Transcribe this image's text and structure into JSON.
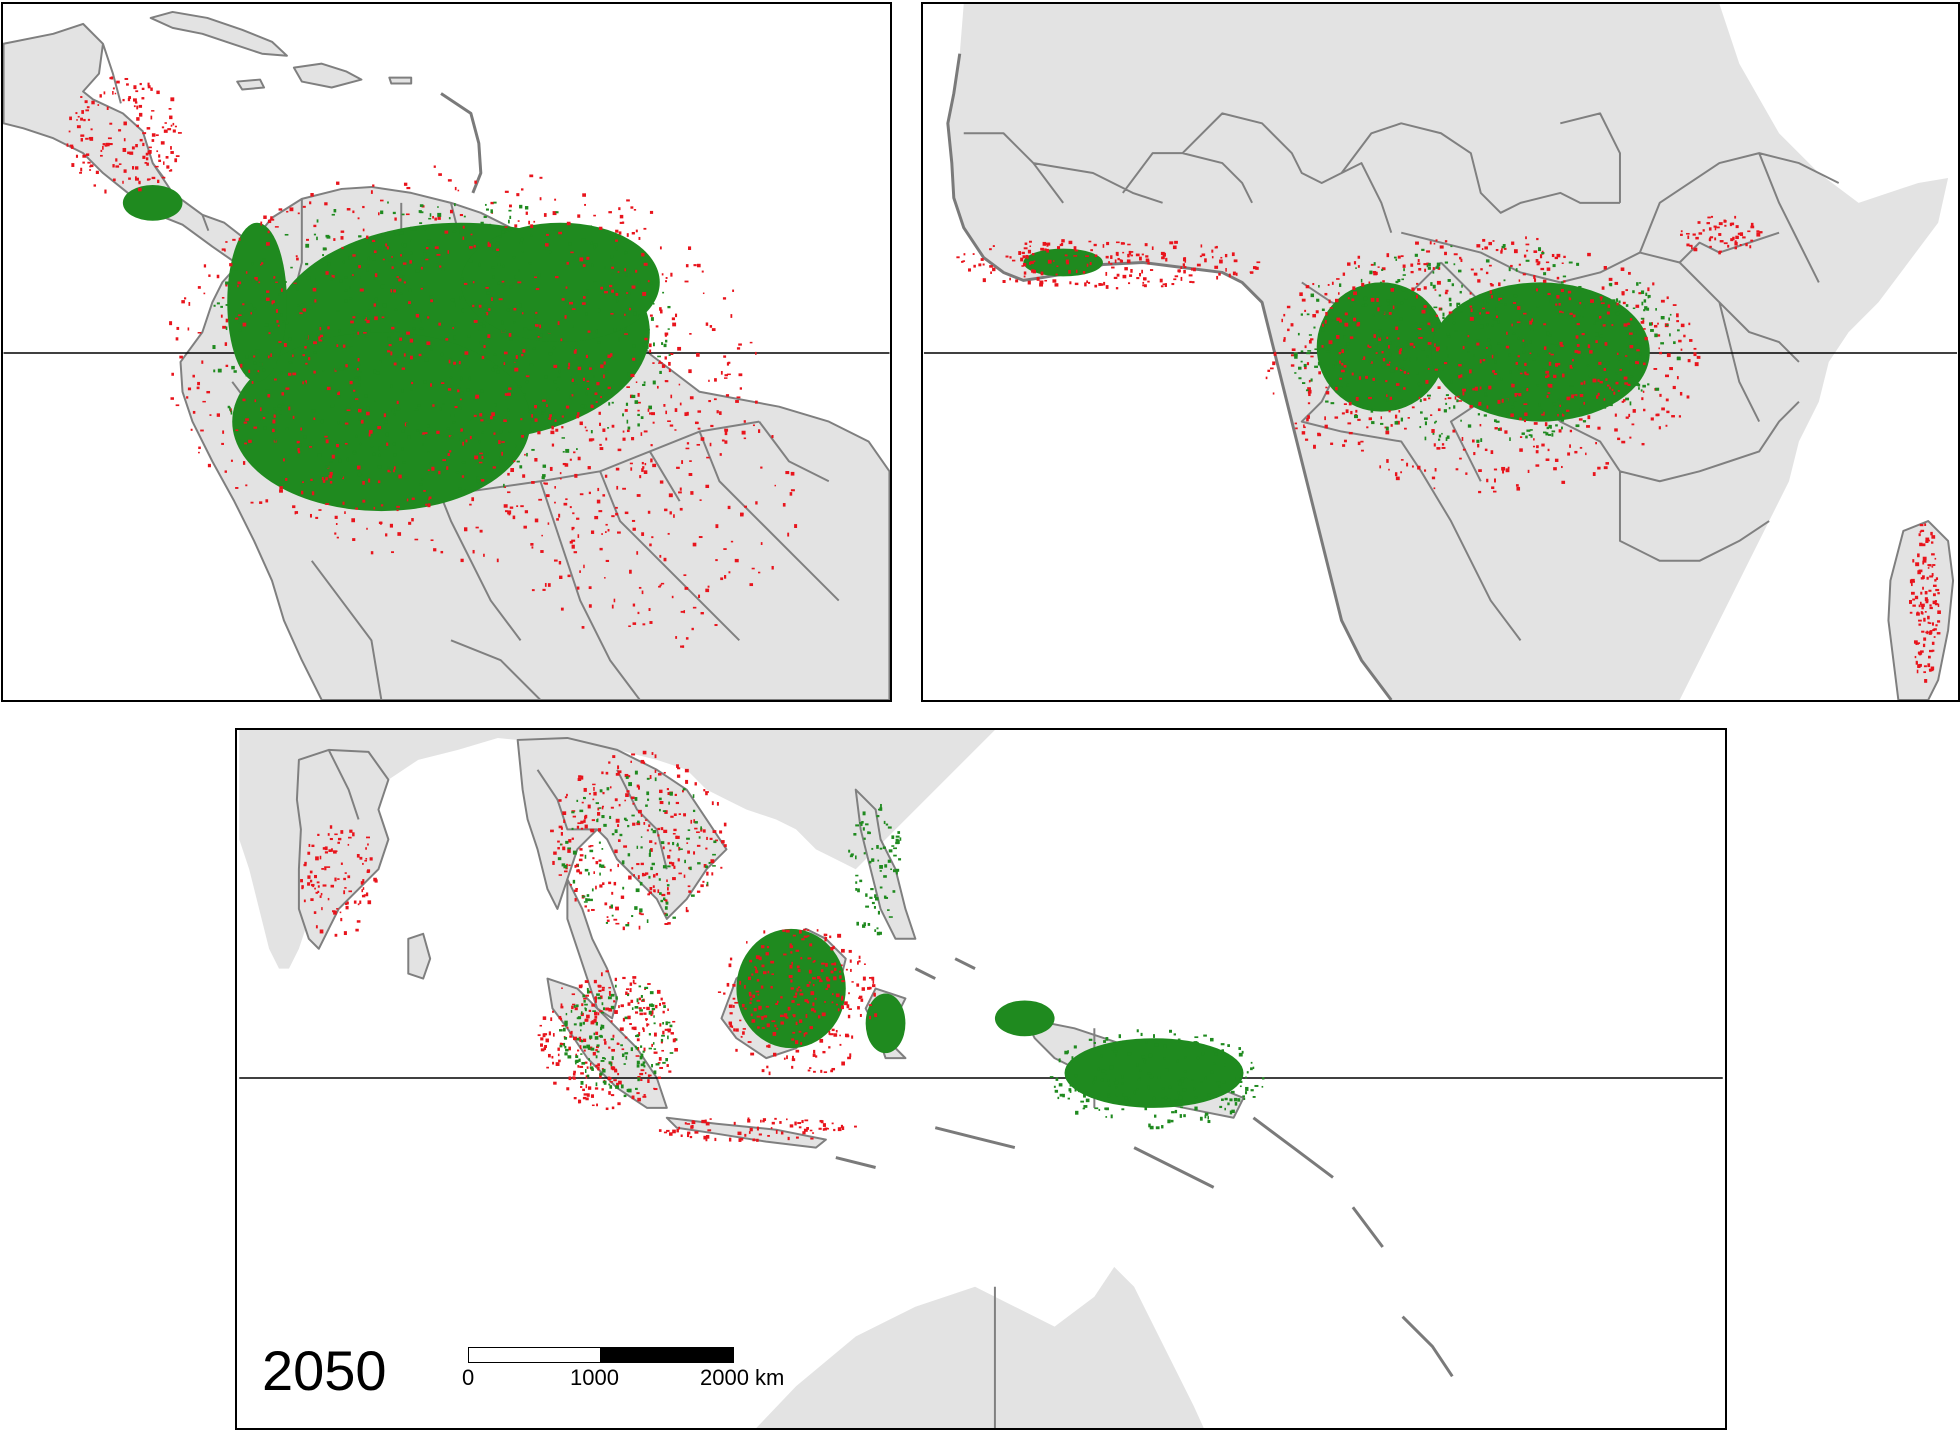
{
  "year": "2050",
  "scale_bar": {
    "ticks": [
      "0",
      "1000",
      "2000 km"
    ]
  },
  "colors": {
    "forest": "#1f8a1f",
    "loss": "#e8141c",
    "land": "#e3e3e3",
    "borders": "#808080",
    "frame": "#000000"
  },
  "panels": [
    {
      "id": "americas",
      "region": "Central & South America",
      "equator_shown": true
    },
    {
      "id": "africa",
      "region": "West & Central Africa, Madagascar",
      "equator_shown": true
    },
    {
      "id": "asia",
      "region": "South & Southeast Asia, New Guinea, Northern Australia",
      "equator_shown": true
    }
  ]
}
